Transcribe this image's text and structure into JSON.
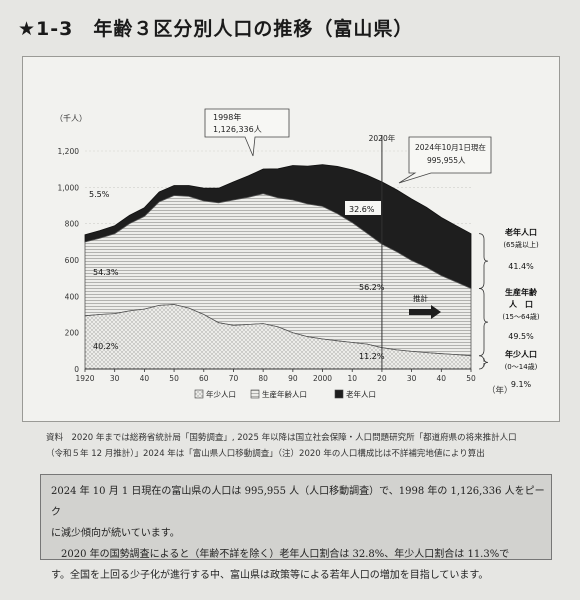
{
  "page_title": "★1-3　年齢３区分別人口の推移（富山県）",
  "chart_data": {
    "type": "area",
    "stacked": true,
    "y_unit": "（千人）",
    "xlabel": "（年）",
    "ylim": [
      0,
      1200
    ],
    "y_ticks": [
      "0",
      "200",
      "400",
      "600",
      "800",
      "1,000",
      "1,200"
    ],
    "x_ticks": [
      {
        "x": 1920,
        "label": "1920"
      },
      {
        "x": 1930,
        "label": "30"
      },
      {
        "x": 1940,
        "label": "40"
      },
      {
        "x": 1950,
        "label": "50"
      },
      {
        "x": 1960,
        "label": "60"
      },
      {
        "x": 1970,
        "label": "70"
      },
      {
        "x": 1980,
        "label": "80"
      },
      {
        "x": 1990,
        "label": "90"
      },
      {
        "x": 2000,
        "label": "2000"
      },
      {
        "x": 2010,
        "label": "10"
      },
      {
        "x": 2020,
        "label": "20"
      },
      {
        "x": 2030,
        "label": "30"
      },
      {
        "x": 2040,
        "label": "40"
      },
      {
        "x": 2050,
        "label": "50"
      }
    ],
    "x": [
      1920,
      1925,
      1930,
      1935,
      1940,
      1945,
      1950,
      1955,
      1960,
      1965,
      1970,
      1975,
      1980,
      1985,
      1990,
      1995,
      2000,
      2005,
      2010,
      2015,
      2020,
      2025,
      2030,
      2035,
      2040,
      2045,
      2050
    ],
    "series": [
      {
        "name": "年少人口",
        "values": [
          293,
          300,
          305,
          320,
          330,
          350,
          355,
          335,
          300,
          255,
          240,
          245,
          250,
          232,
          200,
          178,
          165,
          155,
          146,
          137,
          117,
          105,
          97,
          90,
          84,
          79,
          73
        ]
      },
      {
        "name": "生産年齢人口",
        "values": [
          406,
          420,
          440,
          480,
          510,
          570,
          600,
          615,
          625,
          660,
          690,
          700,
          715,
          710,
          730,
          730,
          730,
          700,
          660,
          610,
          570,
          540,
          500,
          470,
          430,
          400,
          370
        ]
      },
      {
        "name": "老年人口",
        "values": [
          40,
          42,
          44,
          46,
          48,
          55,
          55,
          60,
          70,
          80,
          100,
          118,
          136,
          160,
          190,
          209,
          230,
          260,
          290,
          320,
          343,
          341,
          339,
          330,
          320,
          310,
          302
        ]
      }
    ],
    "annotations": {
      "callout_1998": [
        "1998年",
        "1,126,336人"
      ],
      "callout_2024": [
        "2024年10月1日現在",
        "995,955人"
      ],
      "year_2020": "2020年",
      "projection": "推計",
      "left_pcts": [
        "5.5%",
        "54.3%",
        "40.2%"
      ],
      "mid_pcts": [
        "32.6%",
        "56.2%",
        "11.2%"
      ],
      "right_labels": [
        {
          "name": [
            "老年人口",
            "(65歳以上)"
          ],
          "pct": "41.4%"
        },
        {
          "name": [
            "生産年齢",
            "人　口",
            "(15～64歳)"
          ],
          "pct": "49.5%"
        },
        {
          "name": [
            "年少人口",
            "(0～14歳)"
          ],
          "pct": "9.1%"
        }
      ]
    },
    "legend": [
      "年少人口",
      "生産年齢人口",
      "老年人口"
    ]
  },
  "source_lines": [
    "資料　2020 年までは総務省統計局「国勢調査」, 2025 年以降は国立社会保障・人口問題研究所「都道府県の将来推計人口",
    "（令和５年 12 月推計）」2024 年は「富山県人口移動調査」（注）2020 年の人口構成比は不詳補完地値により算出"
  ],
  "note": [
    "2024 年 10 月 1 日現在の富山県の人口は 995,955 人（人口移動調査）で、1998 年の 1,126,336 人をピーク",
    "に減少傾向が続いています。",
    "　2020 年の国勢調査によると（年齢不詳を除く）老年人口割合は 32.8%、年少人口割合は 11.3%で",
    "す。全国を上回る少子化が進行する中、富山県は政策等による若年人口の増加を目指しています。"
  ],
  "colors": {
    "old": "#1e1e1e",
    "working": "#e9e9e6",
    "young": "#d8d8d4",
    "frame": "#f2f2ef"
  }
}
